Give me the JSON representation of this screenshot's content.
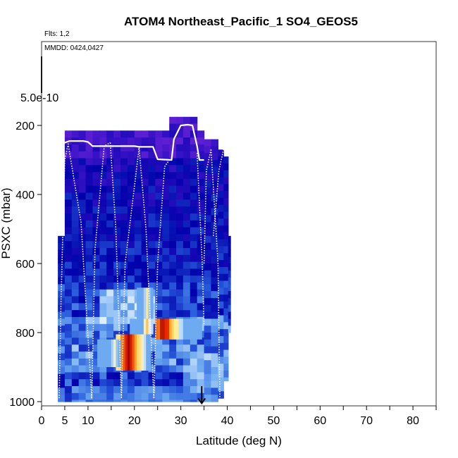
{
  "chart_data": {
    "type": "heatmap",
    "title": "ATOM4 Northeast_Pacific_1 SO4_GEOS5",
    "flights_label": "Flts: 1,2",
    "dates_label": "MMDD: 0424,0427",
    "colorbar_label": "5.0e-10",
    "xlabel": "Latitude (deg N)",
    "ylabel": "PSXC (mbar)",
    "xlim": [
      0,
      85
    ],
    "ylim": [
      1000,
      0
    ],
    "y_reversed": true,
    "x_tick_labels": [
      "0",
      "5",
      "10",
      "20",
      "30",
      "40",
      "50",
      "60",
      "70",
      "80"
    ],
    "x_ticks": [
      0,
      5,
      10,
      20,
      30,
      40,
      50,
      60,
      70,
      80
    ],
    "x_minor_ticks": [
      15,
      25,
      35,
      45,
      55,
      65,
      75,
      85
    ],
    "y_tick_labels": [
      "200",
      "400",
      "600",
      "800",
      "1000"
    ],
    "y_ticks": [
      200,
      400,
      600,
      800,
      1000
    ],
    "columns": [
      {
        "lat": 3.5,
        "w": 1.5,
        "ptop": 520,
        "pbot": 1000
      },
      {
        "lat": 5.0,
        "w": 1.5,
        "ptop": 215,
        "pbot": 1000
      },
      {
        "lat": 6.5,
        "w": 1.5,
        "ptop": 215,
        "pbot": 1000
      },
      {
        "lat": 8.0,
        "w": 1.5,
        "ptop": 215,
        "pbot": 1000
      },
      {
        "lat": 9.5,
        "w": 1.5,
        "ptop": 215,
        "pbot": 1000
      },
      {
        "lat": 11.0,
        "w": 1.5,
        "ptop": 215,
        "pbot": 1000
      },
      {
        "lat": 12.5,
        "w": 1.5,
        "ptop": 215,
        "pbot": 1000
      },
      {
        "lat": 14.0,
        "w": 1.5,
        "ptop": 215,
        "pbot": 1000
      },
      {
        "lat": 15.5,
        "w": 1.5,
        "ptop": 215,
        "pbot": 1000
      },
      {
        "lat": 17.0,
        "w": 1.5,
        "ptop": 215,
        "pbot": 1000
      },
      {
        "lat": 18.5,
        "w": 1.5,
        "ptop": 215,
        "pbot": 1000
      },
      {
        "lat": 20.0,
        "w": 1.5,
        "ptop": 215,
        "pbot": 1000
      },
      {
        "lat": 21.5,
        "w": 1.5,
        "ptop": 215,
        "pbot": 1000
      },
      {
        "lat": 23.0,
        "w": 1.5,
        "ptop": 215,
        "pbot": 1000
      },
      {
        "lat": 24.5,
        "w": 1.5,
        "ptop": 215,
        "pbot": 1000
      },
      {
        "lat": 26.0,
        "w": 1.5,
        "ptop": 215,
        "pbot": 1000
      },
      {
        "lat": 27.5,
        "w": 1.5,
        "ptop": 175,
        "pbot": 1000
      },
      {
        "lat": 29.0,
        "w": 1.5,
        "ptop": 175,
        "pbot": 1000
      },
      {
        "lat": 30.5,
        "w": 1.5,
        "ptop": 175,
        "pbot": 1000
      },
      {
        "lat": 32.0,
        "w": 1.5,
        "ptop": 175,
        "pbot": 1000
      },
      {
        "lat": 33.5,
        "w": 1.5,
        "ptop": 215,
        "pbot": 1000
      },
      {
        "lat": 35.0,
        "w": 1.5,
        "ptop": 240,
        "pbot": 1000
      },
      {
        "lat": 36.5,
        "w": 1.5,
        "ptop": 240,
        "pbot": 1000
      },
      {
        "lat": 38.0,
        "w": 1.2,
        "ptop": 270,
        "pbot": 990
      },
      {
        "lat": 39.2,
        "w": 1.0,
        "ptop": 290,
        "pbot": 940
      },
      {
        "lat": 40.2,
        "w": 0.5,
        "ptop": 520,
        "pbot": 800
      }
    ],
    "hotspots": [
      {
        "lat0": 16.0,
        "lat1": 23.5,
        "p0": 805,
        "p1": 910,
        "level": 0.85,
        "peak_lat": 18.5
      },
      {
        "lat0": 19.0,
        "lat1": 24.0,
        "p0": 760,
        "p1": 805,
        "level": 0.55,
        "peak_lat": 22.5
      },
      {
        "lat0": 24.5,
        "lat1": 34.5,
        "p0": 760,
        "p1": 820,
        "level": 0.8,
        "peak_lat": 26.0
      },
      {
        "lat0": 12.0,
        "lat1": 17.0,
        "p0": 820,
        "p1": 900,
        "level": 0.45,
        "peak_lat": 15.5
      },
      {
        "lat0": 20.5,
        "lat1": 24.0,
        "p0": 670,
        "p1": 760,
        "level": 0.5,
        "peak_lat": 22.5
      }
    ],
    "flight_track_solid": [
      [
        5.0,
        250
      ],
      [
        6.0,
        245
      ],
      [
        9.0,
        245
      ],
      [
        10.0,
        248
      ],
      [
        11.0,
        260
      ],
      [
        20.0,
        260
      ],
      [
        21.0,
        262
      ],
      [
        24.0,
        262
      ],
      [
        25.0,
        298
      ],
      [
        28.0,
        300
      ],
      [
        28.5,
        240
      ],
      [
        30.0,
        200
      ],
      [
        31.5,
        198
      ],
      [
        32.5,
        200
      ],
      [
        33.5,
        260
      ],
      [
        34.0,
        300
      ],
      [
        35.0,
        300
      ]
    ],
    "flight_track_descent_segments": [
      [
        [
          3.8,
          990
        ],
        [
          4.2,
          700
        ],
        [
          5.0,
          300
        ],
        [
          5.8,
          250
        ]
      ],
      [
        [
          5.8,
          260
        ],
        [
          8.5,
          480
        ],
        [
          10.8,
          990
        ]
      ],
      [
        [
          10.8,
          990
        ],
        [
          11.5,
          560
        ],
        [
          13.5,
          260
        ],
        [
          14.8,
          250
        ]
      ],
      [
        [
          14.8,
          250
        ],
        [
          16.0,
          500
        ],
        [
          17.2,
          990
        ]
      ],
      [
        [
          17.2,
          990
        ],
        [
          18.0,
          600
        ],
        [
          21.0,
          265
        ]
      ],
      [
        [
          21.0,
          265
        ],
        [
          22.5,
          500
        ],
        [
          24.2,
          990
        ]
      ],
      [
        [
          24.2,
          990
        ],
        [
          25.0,
          600
        ],
        [
          26.5,
          320
        ],
        [
          27.5,
          300
        ]
      ],
      [
        [
          33.5,
          280
        ],
        [
          34.6,
          600
        ],
        [
          35.0,
          780
        ]
      ],
      [
        [
          35.0,
          600
        ],
        [
          35.5,
          330
        ],
        [
          36.5,
          270
        ]
      ],
      [
        [
          36.5,
          270
        ],
        [
          38.0,
          600
        ],
        [
          38.4,
          990
        ]
      ],
      [
        [
          37.0,
          520
        ],
        [
          38.2,
          330
        ],
        [
          39.2,
          270
        ]
      ]
    ],
    "marker_arrow_lat": 34.5,
    "marker_arrow_p": [
      955,
      1005
    ]
  }
}
